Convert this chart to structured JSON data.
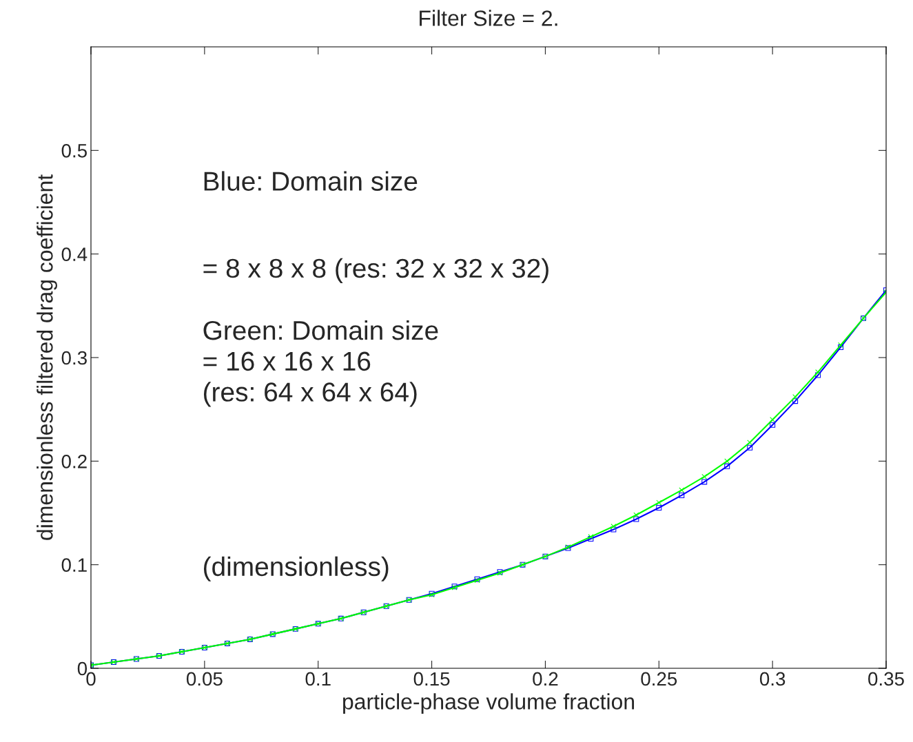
{
  "chart_data": {
    "type": "line",
    "title": "Filter Size = 2.",
    "xlabel": "particle-phase volume fraction",
    "ylabel": "dimensionless filtered drag coefficient",
    "x": [
      0,
      0.01,
      0.02,
      0.03,
      0.04,
      0.05,
      0.06,
      0.07,
      0.08,
      0.09,
      0.1,
      0.11,
      0.12,
      0.13,
      0.14,
      0.15,
      0.16,
      0.17,
      0.18,
      0.19,
      0.2,
      0.21,
      0.22,
      0.23,
      0.24,
      0.25,
      0.26,
      0.27,
      0.28,
      0.29,
      0.3,
      0.31,
      0.32,
      0.33,
      0.34,
      0.35
    ],
    "series": [
      {
        "color": "#0000ff",
        "marker": "square",
        "values": [
          0.003,
          0.006,
          0.009,
          0.012,
          0.016,
          0.02,
          0.024,
          0.028,
          0.033,
          0.038,
          0.043,
          0.048,
          0.054,
          0.06,
          0.066,
          0.072,
          0.079,
          0.086,
          0.093,
          0.1,
          0.108,
          0.116,
          0.125,
          0.134,
          0.144,
          0.155,
          0.167,
          0.18,
          0.195,
          0.213,
          0.235,
          0.258,
          0.283,
          0.31,
          0.338,
          0.365
        ]
      },
      {
        "color": "#00ff00",
        "marker": "cross",
        "values": [
          0.003,
          0.006,
          0.009,
          0.012,
          0.016,
          0.02,
          0.024,
          0.028,
          0.033,
          0.038,
          0.043,
          0.048,
          0.054,
          0.06,
          0.066,
          0.071,
          0.078,
          0.085,
          0.092,
          0.1,
          0.108,
          0.117,
          0.127,
          0.137,
          0.148,
          0.16,
          0.172,
          0.185,
          0.2,
          0.218,
          0.24,
          0.262,
          0.286,
          0.312,
          0.338,
          0.363
        ]
      }
    ],
    "xlim": [
      0,
      0.35
    ],
    "ylim": [
      0,
      0.6
    ],
    "xticks": [
      0,
      0.05,
      0.1,
      0.15,
      0.2,
      0.25,
      0.3,
      0.35
    ],
    "yticks": [
      0,
      0.1,
      0.2,
      0.3,
      0.4,
      0.5
    ],
    "line_style": "solid",
    "grid": false,
    "legend": false,
    "annotations": [
      "Blue: Domain size",
      "= 8 x 8 x 8 (res: 32 x 32 x 32)",
      "Green: Domain size\n= 16 x 16 x 16\n(res: 64 x 64 x 64)",
      "(dimensionless)"
    ]
  }
}
